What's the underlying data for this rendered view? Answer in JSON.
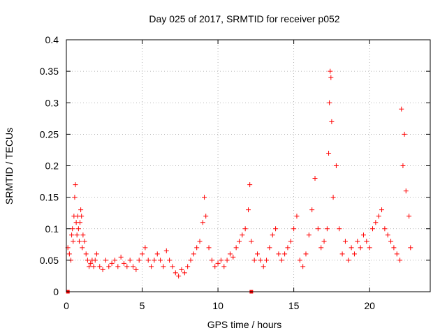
{
  "chart_data": {
    "type": "scatter",
    "title": "Day 025 of 2017, SRMTID for receiver p052",
    "xlabel": "GPS time / hours",
    "ylabel": "SRMTID / TECUs",
    "xlim": [
      0,
      24
    ],
    "ylim": [
      0,
      0.4
    ],
    "x_ticks": [
      0,
      5,
      10,
      15,
      20
    ],
    "y_ticks": [
      0,
      0.05,
      0.1,
      0.15,
      0.2,
      0.25,
      0.3,
      0.35,
      0.4
    ],
    "x_tick_labels": [
      "0",
      "5",
      "10",
      "15",
      "20"
    ],
    "y_tick_labels": [
      "0",
      "0.05",
      "0.1",
      "0.15",
      "0.2",
      "0.25",
      "0.3",
      "0.35",
      "0.4"
    ],
    "grid": true,
    "marker": "plus",
    "color": "#ff0000",
    "series": [
      {
        "name": "SRMTID",
        "x": [
          0.1,
          0.2,
          0.3,
          0.35,
          0.4,
          0.45,
          0.5,
          0.55,
          0.6,
          0.65,
          0.7,
          0.75,
          0.8,
          0.85,
          0.9,
          0.95,
          1.0,
          1.05,
          1.1,
          1.2,
          1.3,
          1.4,
          1.5,
          1.6,
          1.7,
          1.8,
          1.9,
          2.0,
          2.2,
          2.4,
          2.6,
          2.8,
          3.0,
          3.2,
          3.4,
          3.6,
          3.8,
          4.0,
          4.2,
          4.4,
          4.6,
          4.8,
          5.0,
          5.2,
          5.4,
          5.6,
          5.8,
          6.0,
          6.2,
          6.4,
          6.6,
          6.8,
          7.0,
          7.2,
          7.4,
          7.6,
          7.8,
          8.0,
          8.2,
          8.4,
          8.6,
          8.8,
          9.0,
          9.1,
          9.2,
          9.4,
          9.6,
          9.8,
          10.0,
          10.2,
          10.4,
          10.6,
          10.8,
          11.0,
          11.2,
          11.4,
          11.6,
          11.8,
          12.0,
          12.1,
          12.2,
          12.4,
          12.6,
          12.8,
          13.0,
          13.2,
          13.4,
          13.6,
          13.8,
          14.0,
          14.2,
          14.4,
          14.6,
          14.8,
          15.0,
          15.2,
          15.4,
          15.6,
          15.8,
          16.0,
          16.2,
          16.4,
          16.6,
          16.8,
          17.0,
          17.2,
          17.3,
          17.35,
          17.4,
          17.45,
          17.5,
          17.6,
          17.8,
          18.0,
          18.2,
          18.4,
          18.6,
          18.8,
          19.0,
          19.2,
          19.4,
          19.6,
          19.8,
          20.0,
          20.2,
          20.4,
          20.6,
          20.8,
          21.0,
          21.2,
          21.4,
          21.6,
          21.8,
          22.0,
          22.1,
          22.2,
          22.3,
          22.4,
          22.6,
          22.7
        ],
        "values": [
          0.07,
          0.06,
          0.05,
          0.09,
          0.1,
          0.08,
          0.12,
          0.15,
          0.17,
          0.11,
          0.09,
          0.12,
          0.1,
          0.08,
          0.11,
          0.13,
          0.12,
          0.07,
          0.09,
          0.08,
          0.06,
          0.05,
          0.04,
          0.045,
          0.05,
          0.04,
          0.05,
          0.06,
          0.04,
          0.035,
          0.05,
          0.04,
          0.045,
          0.05,
          0.04,
          0.055,
          0.045,
          0.04,
          0.05,
          0.04,
          0.035,
          0.05,
          0.06,
          0.07,
          0.05,
          0.04,
          0.05,
          0.06,
          0.05,
          0.04,
          0.065,
          0.05,
          0.04,
          0.03,
          0.025,
          0.035,
          0.03,
          0.04,
          0.05,
          0.06,
          0.07,
          0.08,
          0.11,
          0.15,
          0.12,
          0.07,
          0.05,
          0.04,
          0.045,
          0.05,
          0.04,
          0.05,
          0.06,
          0.055,
          0.07,
          0.08,
          0.09,
          0.1,
          0.13,
          0.17,
          0.08,
          0.05,
          0.06,
          0.05,
          0.04,
          0.05,
          0.07,
          0.09,
          0.1,
          0.06,
          0.05,
          0.06,
          0.07,
          0.08,
          0.1,
          0.12,
          0.05,
          0.04,
          0.06,
          0.09,
          0.13,
          0.18,
          0.1,
          0.07,
          0.08,
          0.1,
          0.22,
          0.3,
          0.35,
          0.34,
          0.27,
          0.15,
          0.2,
          0.1,
          0.06,
          0.08,
          0.05,
          0.07,
          0.06,
          0.08,
          0.07,
          0.09,
          0.08,
          0.07,
          0.1,
          0.11,
          0.12,
          0.13,
          0.1,
          0.09,
          0.08,
          0.07,
          0.06,
          0.05,
          0.29,
          0.2,
          0.25,
          0.16,
          0.12,
          0.07
        ]
      }
    ],
    "outlier_markers": {
      "x": [
        0.1,
        12.2
      ],
      "values": [
        0,
        0
      ]
    }
  }
}
